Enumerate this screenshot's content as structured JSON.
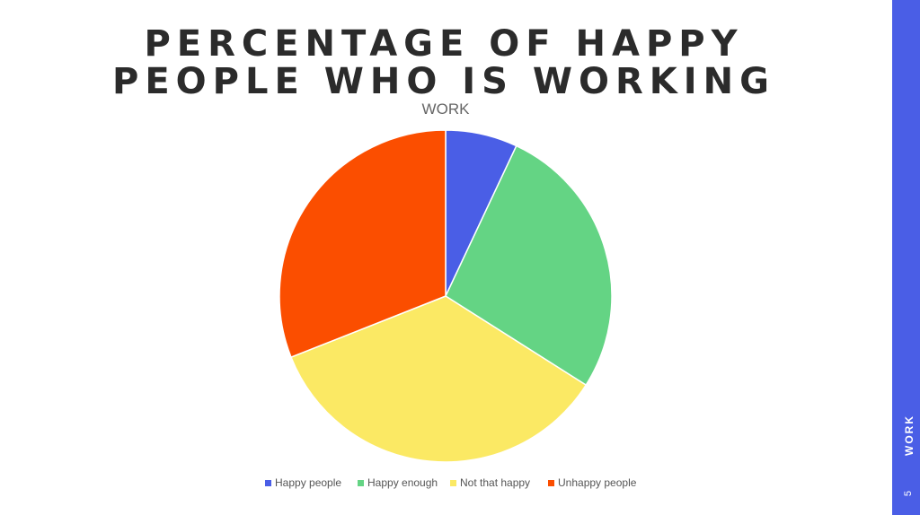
{
  "slide": {
    "heading_lines": [
      "PERCENTAGE OF HAPPY",
      "PEOPLE WHO IS WORKING"
    ],
    "sidebar_label": "WORK",
    "page_number": 5
  },
  "chart_data": {
    "type": "pie",
    "title": "WORK",
    "categories": [
      "Happy people",
      "Happy enough",
      "Not that happy",
      "Unhappy people"
    ],
    "values": [
      7,
      27,
      35,
      31
    ],
    "colors": [
      "#4a5ee6",
      "#64d484",
      "#fbe964",
      "#fb4e00"
    ],
    "legend": "bottom"
  }
}
